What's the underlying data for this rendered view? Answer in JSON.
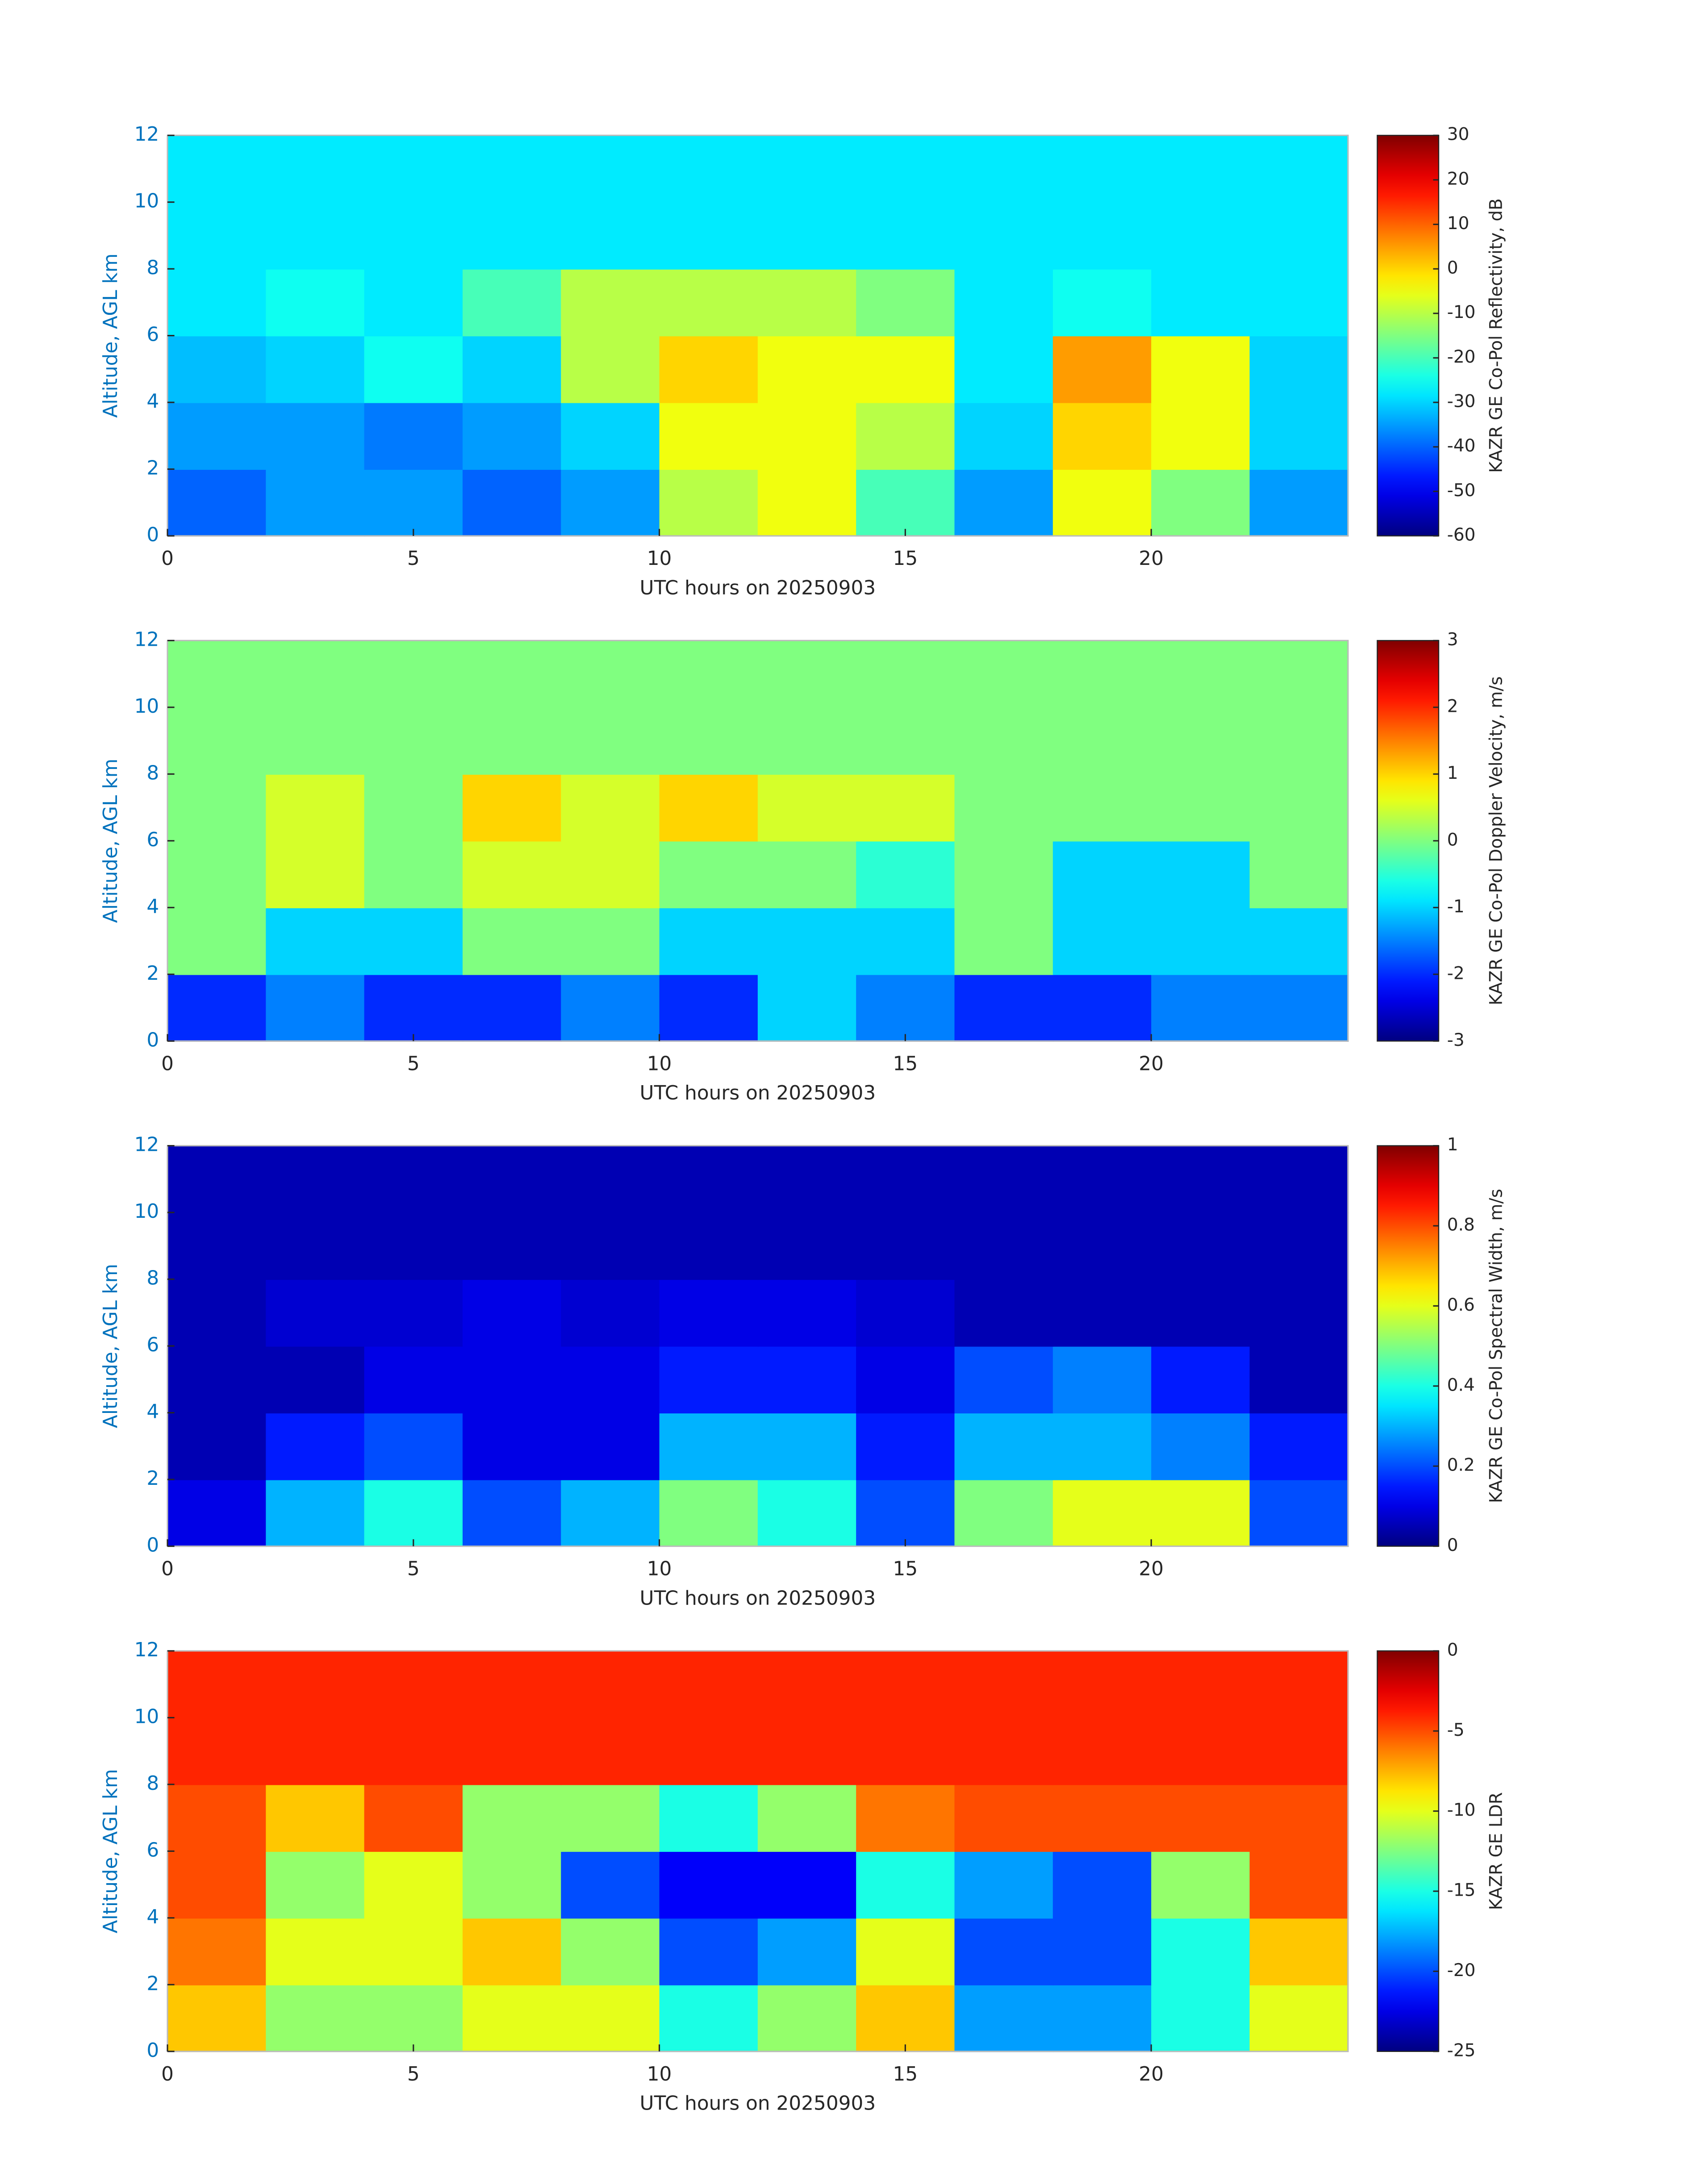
{
  "chart_data": [
    {
      "type": "heatmap",
      "colormap": "jet",
      "x_label": "UTC hours on 20250903",
      "y_label": "Altitude, AGL km",
      "xlim": [
        0,
        24
      ],
      "ylim": [
        0,
        12
      ],
      "xticks": [
        0,
        5,
        10,
        15,
        20
      ],
      "yticks": [
        0,
        2,
        4,
        6,
        8,
        10,
        12
      ],
      "x_bins": [
        0,
        2,
        4,
        6,
        8,
        10,
        12,
        14,
        16,
        18,
        20,
        22,
        24
      ],
      "y_bins": [
        0,
        2,
        4,
        6,
        8,
        10,
        12
      ],
      "z": [
        [
          -40,
          -35,
          -35,
          -40,
          -35,
          -10,
          -5,
          -20,
          -35,
          -5,
          -15,
          -35
        ],
        [
          -35,
          -35,
          -38,
          -35,
          -30,
          -5,
          -5,
          -10,
          -30,
          0,
          -5,
          -30
        ],
        [
          -32,
          -30,
          -25,
          -30,
          -10,
          0,
          -5,
          -5,
          -28,
          5,
          -5,
          -30
        ],
        [
          -28,
          -25,
          -28,
          -20,
          -10,
          -10,
          -10,
          -15,
          -28,
          -25,
          -28,
          -28
        ],
        [
          -28,
          -28,
          -28,
          -28,
          -28,
          -28,
          -28,
          -28,
          -28,
          -28,
          -28,
          -28
        ],
        [
          -28,
          -28,
          -28,
          -28,
          -28,
          -28,
          -28,
          -28,
          -28,
          -28,
          -28,
          -28
        ]
      ],
      "colorbar": {
        "label": "KAZR GE Co-Pol Reflectivity, dB",
        "lim": [
          -60,
          30
        ],
        "ticks": [
          -60,
          -50,
          -40,
          -30,
          -20,
          -10,
          0,
          10,
          20,
          30
        ]
      }
    },
    {
      "type": "heatmap",
      "colormap": "jet",
      "x_label": "UTC hours on 20250903",
      "y_label": "Altitude, AGL km",
      "xlim": [
        0,
        24
      ],
      "ylim": [
        0,
        12
      ],
      "xticks": [
        0,
        5,
        10,
        15,
        20
      ],
      "yticks": [
        0,
        2,
        4,
        6,
        8,
        10,
        12
      ],
      "x_bins": [
        0,
        2,
        4,
        6,
        8,
        10,
        12,
        14,
        16,
        18,
        20,
        22,
        24
      ],
      "y_bins": [
        0,
        2,
        4,
        6,
        8,
        10,
        12
      ],
      "z": [
        [
          -2,
          -1.5,
          -2,
          -2,
          -1.5,
          -2,
          -1,
          -1.5,
          -2,
          -2,
          -1.5,
          -1.5
        ],
        [
          0,
          -1,
          -1,
          0,
          0,
          -1,
          -1,
          -1,
          0,
          -1,
          -1,
          -1
        ],
        [
          0,
          0.5,
          0,
          0.5,
          0.5,
          0,
          0,
          -0.5,
          0,
          -1,
          -1,
          0
        ],
        [
          0,
          0.5,
          0,
          1,
          0.5,
          1,
          0.5,
          0.5,
          0,
          0,
          0,
          0
        ],
        [
          0,
          0,
          0,
          0,
          0,
          0,
          0,
          0,
          0,
          0,
          0,
          0
        ],
        [
          0,
          0,
          0,
          0,
          0,
          0,
          0,
          0,
          0,
          0,
          0,
          0
        ]
      ],
      "colorbar": {
        "label": "KAZR GE Co-Pol Doppler Velocity, m/s",
        "lim": [
          -3,
          3
        ],
        "ticks": [
          -3,
          -2,
          -1,
          0,
          1,
          2,
          3
        ]
      }
    },
    {
      "type": "heatmap",
      "colormap": "jet",
      "x_label": "UTC hours on 20250903",
      "y_label": "Altitude, AGL km",
      "xlim": [
        0,
        24
      ],
      "ylim": [
        0,
        12
      ],
      "xticks": [
        0,
        5,
        10,
        15,
        20
      ],
      "yticks": [
        0,
        2,
        4,
        6,
        8,
        10,
        12
      ],
      "x_bins": [
        0,
        2,
        4,
        6,
        8,
        10,
        12,
        14,
        16,
        18,
        20,
        22,
        24
      ],
      "y_bins": [
        0,
        2,
        4,
        6,
        8,
        10,
        12
      ],
      "z": [
        [
          0.1,
          0.3,
          0.4,
          0.2,
          0.3,
          0.5,
          0.4,
          0.2,
          0.5,
          0.6,
          0.6,
          0.2
        ],
        [
          0.05,
          0.15,
          0.2,
          0.1,
          0.1,
          0.3,
          0.3,
          0.15,
          0.3,
          0.3,
          0.25,
          0.15
        ],
        [
          0.05,
          0.05,
          0.1,
          0.1,
          0.1,
          0.15,
          0.15,
          0.1,
          0.2,
          0.25,
          0.15,
          0.05
        ],
        [
          0.05,
          0.08,
          0.08,
          0.1,
          0.08,
          0.1,
          0.1,
          0.08,
          0.05,
          0.05,
          0.05,
          0.05
        ],
        [
          0.05,
          0.05,
          0.05,
          0.05,
          0.05,
          0.05,
          0.05,
          0.05,
          0.05,
          0.05,
          0.05,
          0.05
        ],
        [
          0.05,
          0.05,
          0.05,
          0.05,
          0.05,
          0.05,
          0.05,
          0.05,
          0.05,
          0.05,
          0.05,
          0.05
        ]
      ],
      "colorbar": {
        "label": "KAZR GE Co-Pol Spectral Width, m/s",
        "lim": [
          0,
          1
        ],
        "ticks": [
          0,
          0.2,
          0.4,
          0.6,
          0.8,
          1
        ]
      }
    },
    {
      "type": "heatmap",
      "colormap": "jet",
      "x_label": "UTC hours on 20250903",
      "y_label": "Altitude, AGL km",
      "xlim": [
        0,
        24
      ],
      "ylim": [
        0,
        12
      ],
      "xticks": [
        0,
        5,
        10,
        15,
        20
      ],
      "yticks": [
        0,
        2,
        4,
        6,
        8,
        10,
        12
      ],
      "x_bins": [
        0,
        2,
        4,
        6,
        8,
        10,
        12,
        14,
        16,
        18,
        20,
        22,
        24
      ],
      "y_bins": [
        0,
        2,
        4,
        6,
        8,
        10,
        12
      ],
      "z": [
        [
          -8,
          -12,
          -12,
          -10,
          -10,
          -15,
          -12,
          -8,
          -18,
          -18,
          -15,
          -10
        ],
        [
          -6,
          -10,
          -10,
          -8,
          -12,
          -20,
          -18,
          -10,
          -20,
          -20,
          -15,
          -8
        ],
        [
          -5,
          -12,
          -10,
          -12,
          -20,
          -22,
          -22,
          -15,
          -18,
          -20,
          -12,
          -5
        ],
        [
          -5,
          -8,
          -5,
          -12,
          -12,
          -15,
          -12,
          -6,
          -5,
          -5,
          -5,
          -5
        ],
        [
          -4,
          -4,
          -4,
          -4,
          -4,
          -4,
          -4,
          -4,
          -4,
          -4,
          -4,
          -4
        ],
        [
          -4,
          -4,
          -4,
          -4,
          -4,
          -4,
          -4,
          -4,
          -4,
          -4,
          -4,
          -4
        ]
      ],
      "colorbar": {
        "label": "KAZR GE LDR",
        "lim": [
          -25,
          0
        ],
        "ticks": [
          -25,
          -20,
          -15,
          -10,
          -5,
          0
        ]
      }
    }
  ]
}
